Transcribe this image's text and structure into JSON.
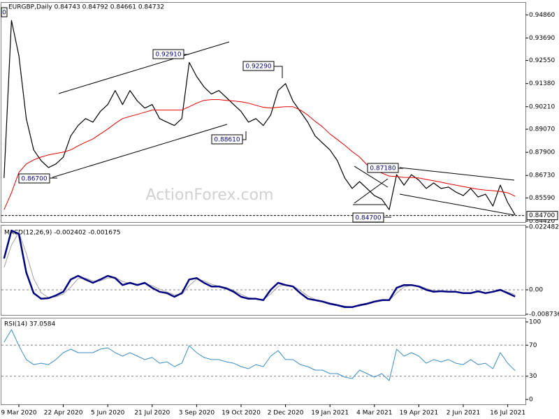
{
  "chart_data": [
    {
      "type": "line",
      "title": "EURGBP,Daily  0.84743 0.84792 0.84661 0.84732",
      "watermark": "ActionForex.com",
      "ylim": [
        0.8437,
        0.9547
      ],
      "yticks": [
        {
          "value": 0.9486,
          "label": "0.94860"
        },
        {
          "value": 0.9369,
          "label": "0.93690"
        },
        {
          "value": 0.9255,
          "label": "0.92550"
        },
        {
          "value": 0.9138,
          "label": "0.91380"
        },
        {
          "value": 0.9021,
          "label": "0.90210"
        },
        {
          "value": 0.8907,
          "label": "0.89070"
        },
        {
          "value": 0.879,
          "label": "0.87900"
        },
        {
          "value": 0.8673,
          "label": "0.86730"
        },
        {
          "value": 0.8559,
          "label": "0.85590"
        },
        {
          "value": 0.8442,
          "label": "0.84420"
        }
      ],
      "hline": {
        "value": 0.847,
        "label": "0.84700"
      },
      "annotations": [
        "0",
        "0.92910",
        "0.92290",
        "0.88610",
        "0.86700",
        "0.87180",
        "0.84700"
      ],
      "series": [
        {
          "color": "#000000",
          "width": 1.2,
          "values": [
            0.866,
            0.9458,
            0.928,
            0.8961,
            0.8802,
            0.8748,
            0.8713,
            0.8731,
            0.8766,
            0.8873,
            0.8926,
            0.8961,
            0.8943,
            0.8997,
            0.9032,
            0.9103,
            0.9032,
            0.9103,
            0.905,
            0.9014,
            0.9032,
            0.8961,
            0.8943,
            0.8926,
            0.8961,
            0.9245,
            0.9174,
            0.9121,
            0.9085,
            0.9103,
            0.9068,
            0.9032,
            0.8997,
            0.8943,
            0.8961,
            0.8926,
            0.8979,
            0.9103,
            0.9138,
            0.905,
            0.8997,
            0.8943,
            0.8873,
            0.8837,
            0.8802,
            0.8748,
            0.866,
            0.8607,
            0.8642,
            0.8607,
            0.8571,
            0.8553,
            0.85,
            0.8677,
            0.8624,
            0.8677,
            0.8649,
            0.8607,
            0.8635,
            0.8607,
            0.8614,
            0.8589,
            0.8571,
            0.8607,
            0.8564,
            0.8578,
            0.8518,
            0.8624,
            0.8536,
            0.8473
          ]
        },
        {
          "color": "#e00000",
          "width": 1,
          "values": [
            0.85,
            0.8585,
            0.8688,
            0.8731,
            0.8752,
            0.8766,
            0.8777,
            0.8784,
            0.8791,
            0.8802,
            0.8823,
            0.8841,
            0.8858,
            0.8883,
            0.8908,
            0.8936,
            0.8961,
            0.8972,
            0.8982,
            0.8993,
            0.9004,
            0.9004,
            0.9004,
            0.9004,
            0.9004,
            0.9021,
            0.9039,
            0.9053,
            0.9057,
            0.9057,
            0.9053,
            0.905,
            0.9046,
            0.9039,
            0.9028,
            0.9018,
            0.9014,
            0.9018,
            0.9021,
            0.9021,
            0.9004,
            0.8979,
            0.8947,
            0.8919,
            0.8883,
            0.8855,
            0.8826,
            0.8794,
            0.8766,
            0.8727,
            0.8699,
            0.8685,
            0.867,
            0.8667,
            0.8663,
            0.8663,
            0.866,
            0.8653,
            0.8646,
            0.8639,
            0.8631,
            0.8624,
            0.8617,
            0.861,
            0.8603,
            0.8599,
            0.8596,
            0.8592,
            0.8585,
            0.8568
          ]
        }
      ]
    },
    {
      "type": "line",
      "title": "MACD(12,26,9) -0.002402 -0.001675",
      "ylim": [
        -0.008736,
        0.022482
      ],
      "yticks": [
        0.022482,
        {
          "value": 0,
          "label": "0.00"
        },
        -0.008736
      ],
      "levels": [
        0
      ],
      "series": [
        {
          "color": "#a0a0a0",
          "width": 1,
          "values": [
            0.008,
            0.016,
            0.0205,
            0.013,
            0.004,
            -0.001,
            -0.0028,
            -0.0025,
            -0.0015,
            0.001,
            0.004,
            0.0042,
            0.0032,
            0.0032,
            0.0042,
            0.0044,
            0.003,
            0.0022,
            0.002,
            0.0022,
            0.0015,
            0.0002,
            -0.0008,
            -0.0018,
            -0.0016,
            0.0015,
            0.0038,
            0.0032,
            0.002,
            0.0013,
            0.0008,
            -0.0002,
            -0.0016,
            -0.0028,
            -0.0032,
            -0.0035,
            -0.0015,
            0.0012,
            0.0018,
            0.0014,
            -0.0002,
            -0.0022,
            -0.0034,
            -0.004,
            -0.0047,
            -0.0053,
            -0.0058,
            -0.0062,
            -0.0058,
            -0.0052,
            -0.0045,
            -0.004,
            -0.0037,
            -0.0012,
            0.001,
            0.0016,
            0.0014,
            0.0005,
            -0.0003,
            -0.0005,
            -0.0006,
            -0.0007,
            -0.001,
            -0.0012,
            -0.0008,
            -0.001,
            -0.0008,
            -0.0003,
            -0.0008,
            -0.0017
          ]
        },
        {
          "color": "#000080",
          "width": 2.5,
          "values": [
            0.0112,
            0.0212,
            0.02,
            0.0062,
            -0.0012,
            -0.0032,
            -0.003,
            -0.002,
            -0.0007,
            0.0037,
            0.005,
            0.0037,
            0.0025,
            0.0037,
            0.005,
            0.0042,
            0.0017,
            0.0025,
            0.0017,
            0.0025,
            0.0007,
            -0.0007,
            -0.0012,
            -0.0025,
            -0.0012,
            0.0037,
            0.0042,
            0.0025,
            0.0012,
            0.0012,
            0.0005,
            -0.0007,
            -0.0025,
            -0.0032,
            -0.0032,
            -0.0037,
            0.0,
            0.0025,
            0.0017,
            0.0012,
            -0.0012,
            -0.0032,
            -0.0037,
            -0.0042,
            -0.005,
            -0.0055,
            -0.0062,
            -0.0062,
            -0.0055,
            -0.005,
            -0.0042,
            -0.0037,
            -0.0037,
            0.0007,
            0.0017,
            0.0017,
            0.0012,
            0.0,
            -0.0007,
            -0.0005,
            -0.0007,
            -0.0007,
            -0.0012,
            -0.0012,
            -0.0005,
            -0.0012,
            -0.0007,
            0.0,
            -0.0012,
            -0.0024
          ]
        }
      ]
    },
    {
      "type": "line",
      "title": "RSI(14) 37.0584",
      "ylim": [
        -5.4,
        104.5
      ],
      "yticks": [
        100,
        70,
        30,
        0
      ],
      "levels": [
        70,
        30
      ],
      "categories": [
        null,
        null,
        "9 Mar 2020",
        null,
        null,
        null,
        null,
        null,
        "22 Apr 2020",
        null,
        null,
        null,
        null,
        null,
        "5 Jun 2020",
        null,
        null,
        null,
        null,
        null,
        "21 Jul 2020",
        null,
        null,
        null,
        null,
        null,
        "3 Sep 2020",
        null,
        null,
        null,
        null,
        null,
        "19 Oct 2020",
        null,
        null,
        null,
        null,
        null,
        "2 Dec 2020",
        null,
        null,
        null,
        null,
        null,
        "19 Jan 2021",
        null,
        null,
        null,
        null,
        null,
        "4 Mar 2021",
        null,
        null,
        null,
        null,
        null,
        "19 Apr 2021",
        null,
        null,
        null,
        null,
        null,
        "2 Jun 2021",
        null,
        null,
        null,
        null,
        null,
        "16 Jul 2021",
        null
      ],
      "series": [
        {
          "color": "#3c8dc4",
          "width": 1,
          "values": [
            73.9,
            90.1,
            69.4,
            51.4,
            45.0,
            46.8,
            45.0,
            51.4,
            60.4,
            64.9,
            60.4,
            60.4,
            60.4,
            64.9,
            66.7,
            60.4,
            55.9,
            60.4,
            55.9,
            51.4,
            54.1,
            46.8,
            48.6,
            42.3,
            46.8,
            69.4,
            60.4,
            54.1,
            51.4,
            51.4,
            48.6,
            46.8,
            42.3,
            39.6,
            45.0,
            42.3,
            55.9,
            63.1,
            51.4,
            51.4,
            45.0,
            42.3,
            37.8,
            37.8,
            33.3,
            33.3,
            28.8,
            27.0,
            37.8,
            33.3,
            28.8,
            33.3,
            24.3,
            64.9,
            55.9,
            60.4,
            55.9,
            46.8,
            51.4,
            48.6,
            51.4,
            46.8,
            45.0,
            51.4,
            45.0,
            46.8,
            39.6,
            60.4,
            46.8,
            37.1
          ]
        }
      ]
    }
  ]
}
